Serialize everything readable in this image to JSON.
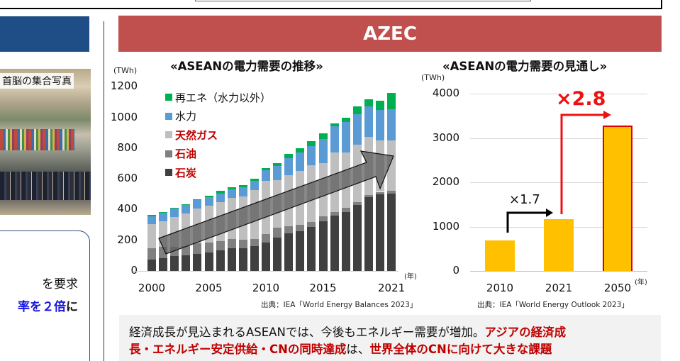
{
  "header": {
    "section_title": "AZEC",
    "header_color": "#c0504d"
  },
  "left_panel": {
    "photo_caption": "首脳の集合写真",
    "card_line1": "を要求",
    "card_line2_blue": "率を２倍",
    "card_line2_black": "に",
    "accent_blue": "#1f4e86"
  },
  "chart_data": [
    {
      "type": "bar",
      "stacked": true,
      "title": "«ASEANの電力需要の推移»",
      "xlabel": "(年)",
      "ylabel": "(TWh)",
      "ylim": [
        0,
        1200
      ],
      "yticks": [
        0,
        200,
        400,
        600,
        800,
        1000,
        1200
      ],
      "xticks_labeled": [
        "2000",
        "2005",
        "2010",
        "2015",
        "2021"
      ],
      "categories": [
        "2000",
        "2001",
        "2002",
        "2003",
        "2004",
        "2005",
        "2006",
        "2007",
        "2008",
        "2009",
        "2010",
        "2011",
        "2012",
        "2013",
        "2014",
        "2015",
        "2016",
        "2017",
        "2018",
        "2019",
        "2020",
        "2021"
      ],
      "legend_position": "upper-left",
      "grid": false,
      "series": [
        {
          "name": "石炭",
          "color": "#404040",
          "values": [
            75,
            85,
            95,
            100,
            110,
            120,
            135,
            150,
            150,
            160,
            185,
            215,
            245,
            260,
            285,
            325,
            360,
            385,
            430,
            480,
            500,
            505
          ]
        },
        {
          "name": "石油",
          "color": "#808080",
          "values": [
            75,
            70,
            60,
            60,
            70,
            65,
            60,
            60,
            55,
            50,
            55,
            65,
            45,
            40,
            35,
            30,
            25,
            25,
            20,
            15,
            15,
            15
          ]
        },
        {
          "name": "天然ガス",
          "color": "#bfbfbf",
          "values": [
            155,
            170,
            195,
            215,
            225,
            240,
            255,
            265,
            280,
            315,
            345,
            310,
            335,
            350,
            370,
            345,
            385,
            360,
            370,
            380,
            335,
            330
          ]
        },
        {
          "name": "水力",
          "color": "#5b9bd5",
          "values": [
            50,
            55,
            55,
            55,
            55,
            55,
            55,
            55,
            60,
            60,
            70,
            95,
            110,
            120,
            125,
            160,
            170,
            200,
            200,
            195,
            200,
            205
          ]
        },
        {
          "name": "再エネ（水力以外）",
          "color": "#00b050",
          "values": [
            10,
            5,
            5,
            5,
            5,
            10,
            15,
            15,
            15,
            15,
            15,
            15,
            25,
            30,
            30,
            35,
            20,
            30,
            50,
            50,
            60,
            105
          ]
        }
      ],
      "legend_order": [
        "再エネ（水力以外）",
        "水力",
        "天然ガス",
        "石油",
        "石炭"
      ],
      "legend_emphasis": {
        "天然ガス": "#c00000",
        "石油": "#c00000",
        "石炭": "#c00000"
      },
      "annotation": "rising trend arrow (gray, 2000→2021)",
      "source": "出典：IEA「World Energy Balances 2023」"
    },
    {
      "type": "bar",
      "title": "«ASEANの電力需要の見通し»",
      "xlabel": "(年)",
      "ylabel": "(TWh)",
      "ylim": [
        0,
        4000
      ],
      "yticks": [
        0,
        1000,
        2000,
        3000,
        4000
      ],
      "grid": true,
      "categories": [
        "2010",
        "2021",
        "2050"
      ],
      "values": [
        690,
        1170,
        3280
      ],
      "bar_color": "#ffc000",
      "annotations": [
        {
          "text": "×1.7",
          "from": "2010",
          "to": "2021",
          "color": "#000000"
        },
        {
          "text": "×2.8",
          "from": "2021",
          "to": "2050",
          "color": "#ee1111"
        }
      ],
      "source": "出典：IEA「World Energy Outlook 2023」"
    }
  ],
  "left_chart": {
    "title": "«ASEANの電力需要の推移»",
    "unit": "(TWh)",
    "year_unit": "(年)",
    "yticks": [
      "1200",
      "1000",
      "800",
      "600",
      "400",
      "200",
      "0"
    ],
    "xticks": [
      "2000",
      "2005",
      "2010",
      "2015",
      "2021"
    ],
    "legend": [
      {
        "label": "再エネ（水力以外）",
        "color": "#00b050",
        "style": "dark"
      },
      {
        "label": "水力",
        "color": "#5b9bd5",
        "style": "dark"
      },
      {
        "label": "天然ガス",
        "color": "#bfbfbf",
        "style": "red"
      },
      {
        "label": "石油",
        "color": "#808080",
        "style": "red"
      },
      {
        "label": "石炭",
        "color": "#404040",
        "style": "red"
      }
    ],
    "source": "出典：IEA「World Energy Balances 2023」"
  },
  "right_chart": {
    "title": "«ASEANの電力需要の見通し»",
    "unit": "(TWh)",
    "year_unit": "(年)",
    "yticks": [
      "4000",
      "3000",
      "2000",
      "1000",
      "0"
    ],
    "xticks": [
      "2010",
      "2021",
      "2050"
    ],
    "mult_small": "×1.7",
    "mult_big": "×2.8",
    "source": "出典：IEA「World Energy Outlook 2023」"
  },
  "summary": {
    "line1_normal": "経済成長が見込まれるASEANでは、今後もエネルギー需要が増加。",
    "line1_red": "アジアの経済成",
    "line2_red_a": "長・エネルギー安定供給・CNの同時達成",
    "line2_normal": "は、",
    "line2_red_b": "世界全体のCNに向けて大きな課題"
  }
}
